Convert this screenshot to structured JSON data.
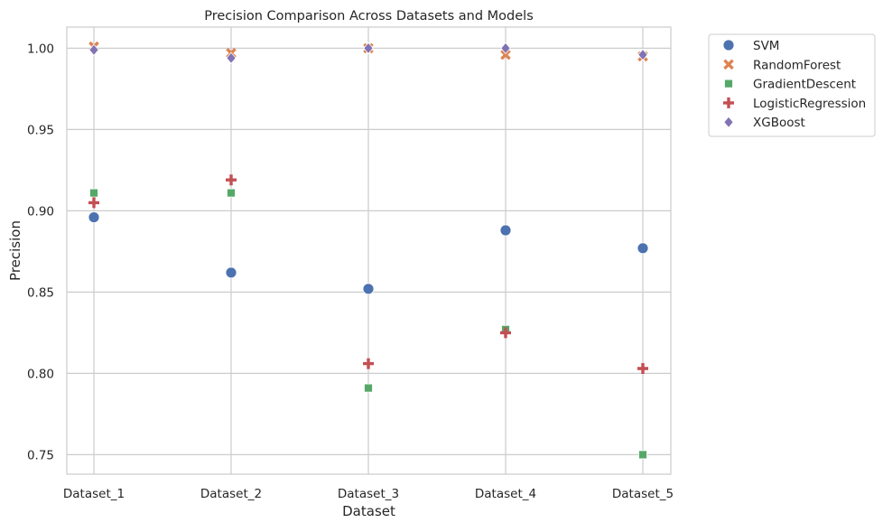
{
  "chart_data": {
    "type": "scatter",
    "title": "Precision Comparison Across Datasets and Models",
    "xlabel": "Dataset",
    "ylabel": "Precision",
    "categories": [
      "Dataset_1",
      "Dataset_2",
      "Dataset_3",
      "Dataset_4",
      "Dataset_5"
    ],
    "ylim": [
      0.738,
      1.013
    ],
    "yticks": [
      0.75,
      0.8,
      0.85,
      0.9,
      0.95,
      1.0
    ],
    "ytick_labels": [
      "0.75",
      "0.80",
      "0.85",
      "0.90",
      "0.95",
      "1.00"
    ],
    "grid": true,
    "legend_position": "outside-top-right",
    "series": [
      {
        "name": "SVM",
        "marker": "circle",
        "color": "#4c72b0",
        "values": [
          0.896,
          0.862,
          0.852,
          0.888,
          0.877
        ]
      },
      {
        "name": "RandomForest",
        "marker": "x",
        "color": "#dd8452",
        "values": [
          1.001,
          0.997,
          1.0,
          0.996,
          0.995
        ]
      },
      {
        "name": "GradientDescent",
        "marker": "square",
        "color": "#55a868",
        "values": [
          0.911,
          0.911,
          0.791,
          0.827,
          0.75
        ]
      },
      {
        "name": "LogisticRegression",
        "marker": "plus",
        "color": "#c44e52",
        "values": [
          0.905,
          0.919,
          0.806,
          0.825,
          0.803
        ]
      },
      {
        "name": "XGBoost",
        "marker": "diamond",
        "color": "#8172b3",
        "values": [
          0.999,
          0.994,
          1.0,
          1.0,
          0.996
        ]
      }
    ]
  }
}
